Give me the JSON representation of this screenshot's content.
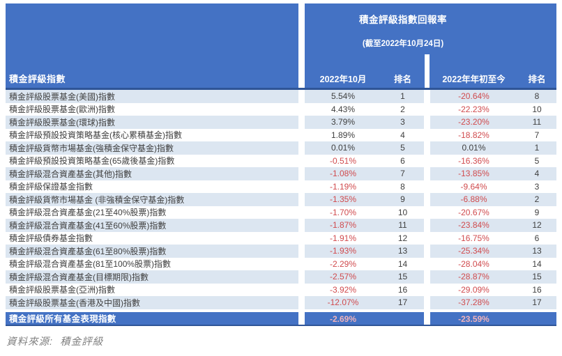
{
  "header": {
    "title": "積金評級指數回報率",
    "subtitle": "(截至2022年10月24日)",
    "index_column_label": "積金評級指數",
    "col_october": "2022年10月",
    "col_rank_1": "排名",
    "col_ytd": "2022年年初至今",
    "col_rank_2": "排名"
  },
  "rows": [
    {
      "name": "積金評級股票基金(美國)指數",
      "oct": "5.54%",
      "rank1": "1",
      "ytd": "-20.64%",
      "rank2": "8"
    },
    {
      "name": "積金評級股票基金(歐洲)指數",
      "oct": "4.43%",
      "rank1": "2",
      "ytd": "-22.23%",
      "rank2": "10"
    },
    {
      "name": "積金評級股票基金(環球)指數",
      "oct": "3.79%",
      "rank1": "3",
      "ytd": "-23.20%",
      "rank2": "11"
    },
    {
      "name": "積金評級預設投資策略基金(核心累積基金)指數",
      "oct": "1.89%",
      "rank1": "4",
      "ytd": "-18.82%",
      "rank2": "7"
    },
    {
      "name": "積金評級貨幣市場基金(強積金保守基金)指數",
      "oct": "0.01%",
      "rank1": "5",
      "ytd": "0.01%",
      "rank2": "1"
    },
    {
      "name": "積金評級預設投資策略基金(65歲後基金)指數",
      "oct": "-0.51%",
      "rank1": "6",
      "ytd": "-16.36%",
      "rank2": "5"
    },
    {
      "name": "積金評級混合資產基金(其他)指數",
      "oct": "-1.08%",
      "rank1": "7",
      "ytd": "-13.85%",
      "rank2": "4"
    },
    {
      "name": "積金評級保證基金指數",
      "oct": "-1.19%",
      "rank1": "8",
      "ytd": "-9.64%",
      "rank2": "3"
    },
    {
      "name": "積金評級貨幣市場基金 (非強積金保守基金)指數",
      "oct": "-1.35%",
      "rank1": "9",
      "ytd": "-6.88%",
      "rank2": "2"
    },
    {
      "name": "積金評級混合資產基金(21至40%股票)指數",
      "oct": "-1.70%",
      "rank1": "10",
      "ytd": "-20.67%",
      "rank2": "9"
    },
    {
      "name": "積金評級混合資產基金(41至60%股票)指數",
      "oct": "-1.87%",
      "rank1": "11",
      "ytd": "-23.84%",
      "rank2": "12"
    },
    {
      "name": "積金評級債券基金指數",
      "oct": "-1.91%",
      "rank1": "12",
      "ytd": "-16.75%",
      "rank2": "6"
    },
    {
      "name": "積金評級混合資產基金(61至80%股票)指數",
      "oct": "-1.93%",
      "rank1": "13",
      "ytd": "-25.34%",
      "rank2": "13"
    },
    {
      "name": "積金評級混合資產基金(81至100%股票)指數",
      "oct": "-2.29%",
      "rank1": "14",
      "ytd": "-28.04%",
      "rank2": "14"
    },
    {
      "name": "積金評級混合資產基金(目標期限)指數",
      "oct": "-2.57%",
      "rank1": "15",
      "ytd": "-28.87%",
      "rank2": "15"
    },
    {
      "name": "積金評級股票基金(亞洲)指數",
      "oct": "-3.92%",
      "rank1": "16",
      "ytd": "-29.09%",
      "rank2": "16"
    },
    {
      "name": "積金評級股票基金(香港及中國)指數",
      "oct": "-12.07%",
      "rank1": "17",
      "ytd": "-37.28%",
      "rank2": "17"
    }
  ],
  "summary": {
    "name": "積金評級所有基金表現指數",
    "oct": "-2.69%",
    "ytd": "-23.59%"
  },
  "footer": {
    "source": "資料來源:  積金評級"
  },
  "colors": {
    "header_blue": "#4472C4",
    "header_rule_blue": "#2F5597",
    "row_light_blue": "#DCE6F1",
    "negative_red": "#D04A4D",
    "body_text": "#3F3F3F",
    "summary_value_pink": "#F1B3BB",
    "footer_gray": "#808080"
  }
}
